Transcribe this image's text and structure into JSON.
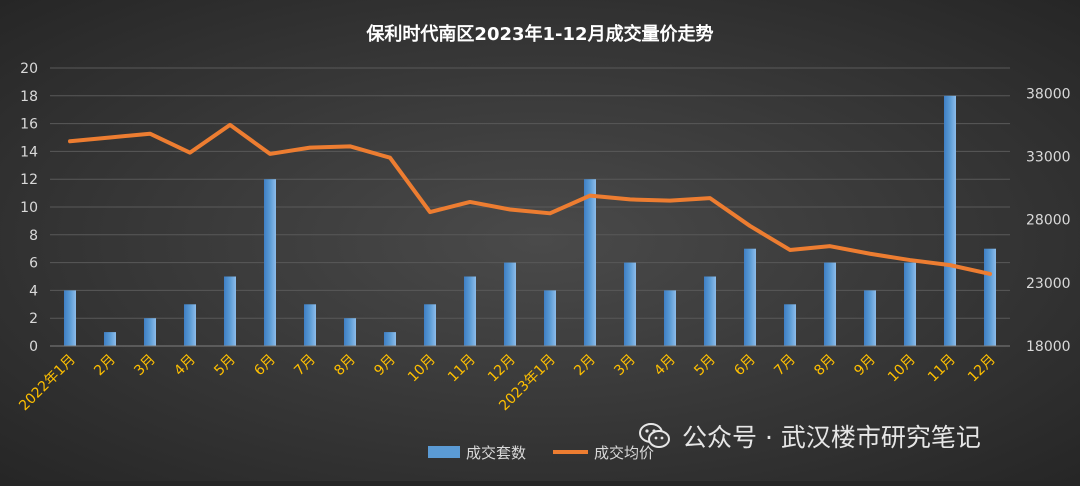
{
  "chart_data": {
    "type": "bar+line",
    "title": "保利时代南区2023年1-12月成交量价走势",
    "categories": [
      "2022年1月",
      "2月",
      "3月",
      "4月",
      "5月",
      "6月",
      "7月",
      "8月",
      "9月",
      "10月",
      "11月",
      "12月",
      "2023年1月",
      "2月",
      "3月",
      "4月",
      "5月",
      "6月",
      "7月",
      "8月",
      "9月",
      "10月",
      "11月",
      "12月"
    ],
    "series": [
      {
        "name": "成交套数",
        "type": "bar",
        "axis": "left",
        "color": "#5b9bd5",
        "values": [
          4,
          1,
          2,
          3,
          5,
          12,
          3,
          2,
          1,
          3,
          5,
          6,
          4,
          12,
          6,
          4,
          5,
          7,
          3,
          6,
          4,
          6,
          18,
          7
        ]
      },
      {
        "name": "成交均价",
        "type": "line",
        "axis": "right",
        "color": "#ed7d31",
        "values": [
          34200,
          34500,
          34800,
          33300,
          35500,
          33200,
          33700,
          33800,
          32900,
          28600,
          29400,
          28800,
          28500,
          29900,
          29600,
          29500,
          29700,
          27500,
          25600,
          25900,
          25300,
          24800,
          24400,
          23700
        ]
      }
    ],
    "yleft": {
      "min": 0,
      "max": 20,
      "ticks": [
        0,
        2,
        4,
        6,
        8,
        10,
        12,
        14,
        16,
        18,
        20
      ]
    },
    "yright": {
      "min": 18000,
      "max": 40000,
      "ticks": [
        18000,
        23000,
        28000,
        33000,
        38000
      ]
    },
    "legend_position": "bottom",
    "xtick_color": "#ffc000"
  },
  "watermark": {
    "text": "公众号 · 武汉楼市研究笔记",
    "icon": "wechat-icon"
  }
}
